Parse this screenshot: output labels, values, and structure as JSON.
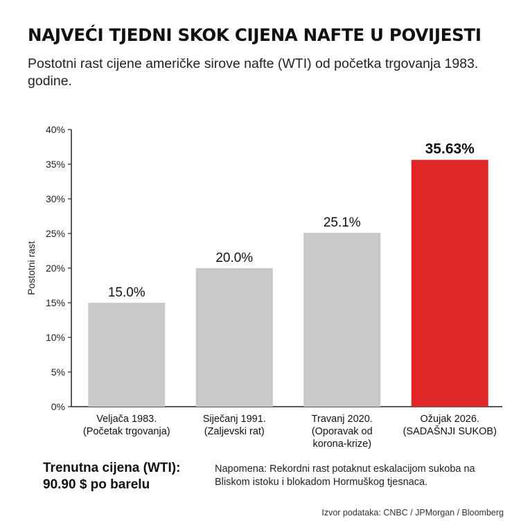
{
  "title": "NAJVEĆI TJEDNI SKOK CIJENA NAFTE U POVIJESTI",
  "subtitle": "Postotni rast cijene američke sirove nafte (WTI) od početka trgovanja 1983. godine.",
  "chart_data": {
    "type": "bar",
    "ylabel": "Postotni rast",
    "xlabel": "",
    "ylim": [
      0,
      40
    ],
    "yticks": [
      "0%",
      "5%",
      "10%",
      "15%",
      "20%",
      "25%",
      "30%",
      "35%",
      "40%"
    ],
    "grid": false,
    "categories": [
      [
        "Veljača 1983.",
        "(Početak trgovanja)"
      ],
      [
        "Siječanj 1991.",
        "(Zaljevski rat)"
      ],
      [
        "Travanj 2020.",
        "(Oporavak od",
        "korona-krize)"
      ],
      [
        "Ožujak 2026.",
        "(SADAŠNJI SUKOB)"
      ]
    ],
    "values": [
      15.0,
      20.0,
      25.1,
      35.63
    ],
    "data_labels": [
      "15.0%",
      "20.0%",
      "25.1%",
      "35.63%"
    ],
    "highlight_index": 3,
    "colors": {
      "bar": "#c9c9c9",
      "highlight": "#e02726",
      "axis": "#222222"
    }
  },
  "price_note": {
    "line1": "Trenutna cijena (WTI):",
    "line2": "90.90 $ po barelu"
  },
  "footnote": "Napomena: Rekordni rast potaknut eskalacijom sukoba na Bliskom istoku i blokadom Hormuškog tjesnaca.",
  "source": "Izvor podataka: CNBC / JPMorgan / Bloomberg"
}
